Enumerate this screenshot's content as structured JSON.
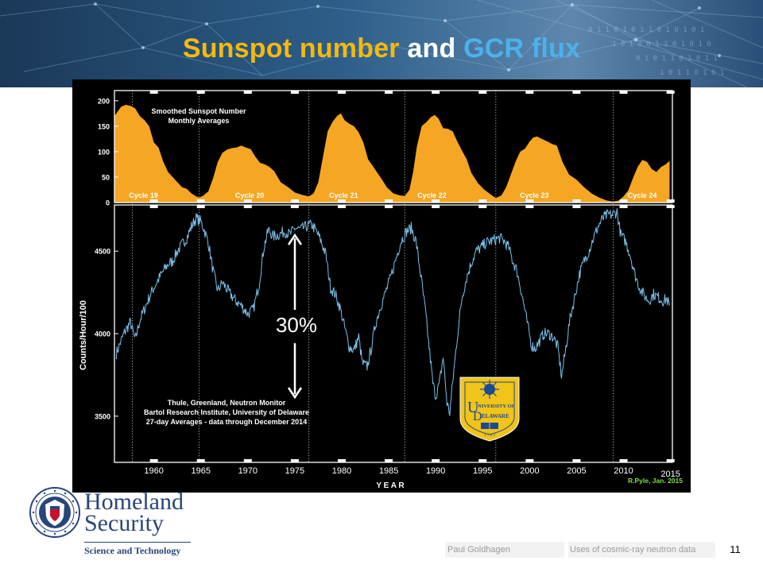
{
  "slide": {
    "title_part1": "Sunspot number",
    "title_part2": "and",
    "title_part3": "GCR flux",
    "page_number": "11",
    "footer_author": "Paul Goldhagen",
    "footer_topic": "Uses of cosmic-ray neutron data",
    "org_line1": "Homeland",
    "org_line2": "Security",
    "org_division": "Science and Technology"
  },
  "colors": {
    "title_yellow": "#f5b90e",
    "title_white": "#ffffff",
    "title_blue": "#4ab2ec",
    "sunspot_fill": "#f5a623",
    "neutron_line": "#7cc1ea",
    "credit_green": "#7ee23e",
    "dhs_blue": "#27467a",
    "ud_gold": "#f2c318",
    "ud_blue": "#1c4a94"
  },
  "chart_data": [
    {
      "type": "area",
      "title": "Smoothed Sunspot Number",
      "subtitle": "Monthly Averages",
      "ylim": [
        0,
        220
      ],
      "yticks": [
        0,
        50,
        100,
        150,
        200
      ],
      "xlim": [
        1955.8,
        2015.2
      ],
      "grid": "dotted vertical lines at solar cycle boundaries",
      "cycle_boundaries": [
        1957.7,
        1964.8,
        1976.5,
        1986.7,
        1996.4,
        2008.9
      ],
      "cycle_labels": [
        {
          "label": "Cycle 19",
          "x": 1958.9
        },
        {
          "label": "Cycle 20",
          "x": 1970.2
        },
        {
          "label": "Cycle 21",
          "x": 1980.2
        },
        {
          "label": "Cycle 22",
          "x": 1989.6
        },
        {
          "label": "Cycle 23",
          "x": 2000.5
        },
        {
          "label": "Cycle 24",
          "x": 2012.0
        }
      ],
      "x": [
        1955.8,
        1956.5,
        1957.0,
        1957.5,
        1958.0,
        1958.5,
        1959.0,
        1959.5,
        1960.0,
        1960.5,
        1961.0,
        1961.5,
        1962.0,
        1962.5,
        1963.0,
        1963.5,
        1964.0,
        1964.5,
        1964.8,
        1965.2,
        1965.8,
        1966.3,
        1966.8,
        1967.3,
        1967.8,
        1968.3,
        1968.8,
        1969.3,
        1969.8,
        1970.3,
        1970.8,
        1971.3,
        1971.8,
        1972.3,
        1972.8,
        1973.5,
        1974.3,
        1975.0,
        1975.8,
        1976.5,
        1977.0,
        1977.5,
        1978.0,
        1978.5,
        1979.0,
        1979.5,
        1979.9,
        1980.3,
        1980.8,
        1981.3,
        1981.8,
        1982.3,
        1982.8,
        1983.3,
        1983.8,
        1984.3,
        1984.8,
        1985.5,
        1986.2,
        1986.7,
        1987.2,
        1987.6,
        1988.0,
        1988.5,
        1989.0,
        1989.5,
        1989.9,
        1990.3,
        1990.8,
        1991.3,
        1991.8,
        1992.3,
        1992.8,
        1993.3,
        1993.8,
        1994.5,
        1995.2,
        1996.0,
        1996.4,
        1997.0,
        1997.5,
        1998.0,
        1998.5,
        1999.0,
        1999.5,
        2000.0,
        2000.4,
        2000.8,
        2001.3,
        2001.9,
        2002.4,
        2002.9,
        2003.5,
        2004.2,
        2005.0,
        2005.8,
        2006.6,
        2007.4,
        2008.2,
        2008.9,
        2009.5,
        2010.0,
        2010.5,
        2011.0,
        2011.5,
        2012.0,
        2012.5,
        2013.0,
        2013.5,
        2014.0,
        2014.5,
        2014.9
      ],
      "values": [
        170,
        188,
        192,
        190,
        185,
        170,
        162,
        150,
        118,
        108,
        80,
        60,
        50,
        40,
        30,
        27,
        18,
        12,
        10,
        13,
        22,
        48,
        80,
        98,
        104,
        107,
        108,
        112,
        108,
        105,
        90,
        78,
        75,
        70,
        62,
        40,
        30,
        20,
        15,
        12,
        18,
        40,
        90,
        140,
        158,
        170,
        175,
        162,
        155,
        150,
        138,
        118,
        85,
        72,
        58,
        45,
        30,
        18,
        14,
        13,
        25,
        60,
        110,
        150,
        158,
        168,
        172,
        165,
        146,
        145,
        140,
        120,
        102,
        85,
        58,
        38,
        25,
        14,
        9,
        14,
        30,
        55,
        80,
        100,
        106,
        120,
        128,
        130,
        125,
        120,
        115,
        112,
        80,
        55,
        45,
        30,
        18,
        10,
        4,
        2,
        4,
        12,
        24,
        48,
        70,
        84,
        80,
        66,
        60,
        70,
        75,
        82
      ]
    },
    {
      "type": "line",
      "title": "Thule, Greenland, Neutron Monitor",
      "subtitle": "Bartol Research Institute, University of Delaware",
      "note": "27-day Averages - data through December 2014",
      "ylabel": "Counts/Hour/100",
      "ylim": [
        3220,
        4780
      ],
      "yticks": [
        3500,
        4000,
        4500
      ],
      "xlim": [
        1955.8,
        2015.2
      ],
      "xlabel": "Y E A R",
      "xticks": [
        1960,
        1965,
        1970,
        1975,
        1980,
        1985,
        1990,
        1995,
        2000,
        2005,
        2010,
        2015
      ],
      "annotation": "30%",
      "x": [
        1956.0,
        1956.8,
        1957.5,
        1958.0,
        1958.5,
        1959.0,
        1959.5,
        1960.0,
        1960.5,
        1961.0,
        1961.5,
        1962.0,
        1962.5,
        1963.0,
        1963.5,
        1964.0,
        1964.5,
        1965.0,
        1965.3,
        1965.8,
        1966.3,
        1966.8,
        1967.3,
        1968.0,
        1968.7,
        1969.3,
        1970.0,
        1970.6,
        1971.2,
        1971.7,
        1972.2,
        1972.7,
        1973.3,
        1973.9,
        1974.5,
        1975.0,
        1975.6,
        1976.2,
        1976.8,
        1977.3,
        1977.8,
        1978.3,
        1978.8,
        1979.3,
        1979.8,
        1980.3,
        1980.8,
        1981.3,
        1981.8,
        1982.2,
        1982.7,
        1983.1,
        1983.6,
        1984.1,
        1984.6,
        1985.2,
        1985.8,
        1986.3,
        1986.9,
        1987.4,
        1987.9,
        1988.4,
        1988.9,
        1989.3,
        1989.7,
        1990.0,
        1990.4,
        1990.8,
        1991.2,
        1991.5,
        1991.8,
        1992.3,
        1992.8,
        1993.3,
        1993.8,
        1994.3,
        1994.8,
        1995.3,
        1995.8,
        1996.3,
        1996.8,
        1997.3,
        1997.8,
        1998.2,
        1998.6,
        1999.0,
        1999.4,
        1999.8,
        2000.2,
        2000.6,
        2001.0,
        2001.5,
        2002.0,
        2002.5,
        2003.0,
        2003.4,
        2003.8,
        2004.3,
        2004.8,
        2005.3,
        2005.8,
        2006.3,
        2006.8,
        2007.3,
        2007.8,
        2008.3,
        2008.8,
        2009.3,
        2009.7,
        2010.2,
        2010.7,
        2011.2,
        2011.7,
        2012.2,
        2012.7,
        2013.2,
        2013.7,
        2014.2,
        2014.6,
        2014.9
      ],
      "values": [
        3880,
        4000,
        4070,
        3960,
        4080,
        4150,
        4220,
        4280,
        4330,
        4380,
        4420,
        4440,
        4500,
        4540,
        4580,
        4650,
        4700,
        4680,
        4640,
        4550,
        4380,
        4260,
        4310,
        4250,
        4200,
        4170,
        4120,
        4150,
        4300,
        4520,
        4630,
        4590,
        4600,
        4620,
        4600,
        4640,
        4630,
        4650,
        4660,
        4620,
        4560,
        4480,
        4280,
        4240,
        4160,
        4040,
        3920,
        3900,
        3980,
        3820,
        3800,
        3900,
        4060,
        4160,
        4240,
        4340,
        4460,
        4560,
        4620,
        4640,
        4560,
        4360,
        4140,
        3920,
        3700,
        3620,
        3700,
        3860,
        3580,
        3520,
        3700,
        3980,
        4220,
        4340,
        4430,
        4500,
        4520,
        4550,
        4560,
        4570,
        4580,
        4560,
        4520,
        4440,
        4390,
        4290,
        4170,
        4050,
        3930,
        3910,
        3950,
        4000,
        4000,
        3980,
        3920,
        3740,
        3890,
        4090,
        4220,
        4360,
        4440,
        4500,
        4580,
        4650,
        4700,
        4720,
        4720,
        4740,
        4600,
        4560,
        4480,
        4360,
        4280,
        4230,
        4200,
        4240,
        4220,
        4200,
        4210,
        4170
      ]
    }
  ],
  "credit": "R.Pyle, Jan. 2015",
  "logo_text": {
    "ud_top": "U",
    "ud_line1": "NIVERSITY OF",
    "ud_line2": "ELAWARE",
    "ud_d": "D",
    "ud_year": "1 7 4 3"
  }
}
